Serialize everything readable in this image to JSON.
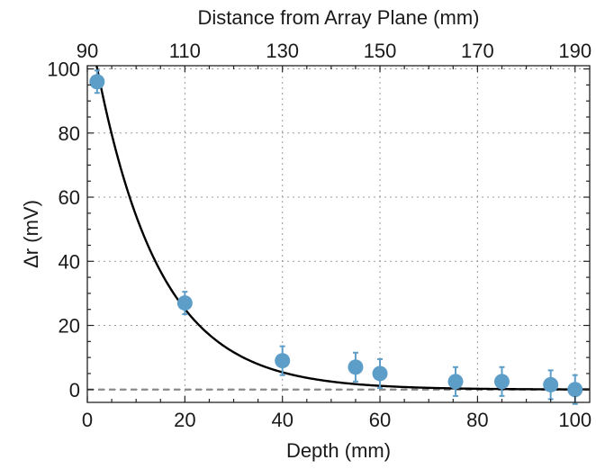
{
  "chart_data": {
    "type": "scatter",
    "title": "",
    "xlabel": "Depth (mm)",
    "ylabel": "Δr (mV)",
    "x2label": "Distance from Array Plane (mm)",
    "xlim": [
      0,
      103
    ],
    "ylim": [
      -4,
      101
    ],
    "x2lim": [
      90,
      193
    ],
    "xticks": [
      0,
      20,
      40,
      60,
      80,
      100
    ],
    "yticks": [
      0,
      20,
      40,
      60,
      80,
      100
    ],
    "x2ticks": [
      90,
      110,
      130,
      150,
      170,
      190
    ],
    "grid": true,
    "points": [
      {
        "x": 2,
        "y": 96,
        "err": 3.5
      },
      {
        "x": 20,
        "y": 27,
        "err": 3.5
      },
      {
        "x": 40,
        "y": 9,
        "err": 4.5
      },
      {
        "x": 55,
        "y": 7,
        "err": 4.5
      },
      {
        "x": 60,
        "y": 5,
        "err": 4.5
      },
      {
        "x": 75.5,
        "y": 2.5,
        "err": 4.5
      },
      {
        "x": 85,
        "y": 2.5,
        "err": 4.5
      },
      {
        "x": 95,
        "y": 1.5,
        "err": 4.5
      },
      {
        "x": 100,
        "y": 0,
        "err": 4.5
      }
    ],
    "fit": {
      "type": "exponential",
      "amplitude": 117,
      "decay_length": 13,
      "color": "#000000"
    },
    "reference_line_y": 0,
    "colors": {
      "points": "#5d9ec9",
      "reference_line": "#8a8a8a"
    }
  }
}
